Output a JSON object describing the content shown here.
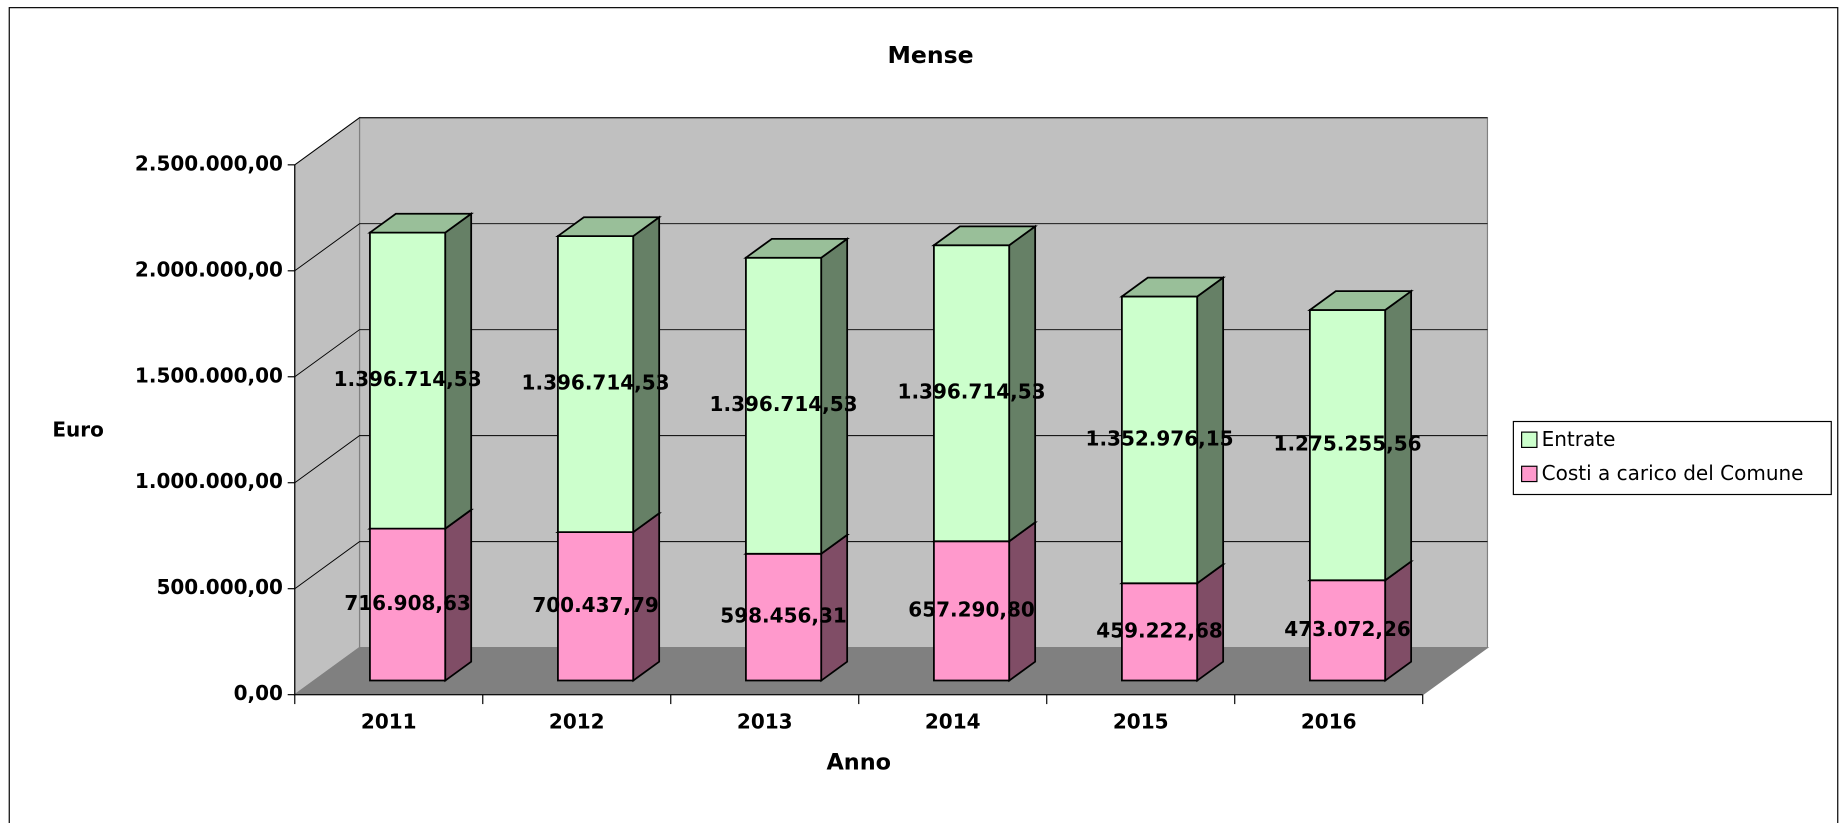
{
  "chart_data": {
    "type": "bar3d_stacked",
    "title": "Mense",
    "y_label": "Euro",
    "x_label": "Anno",
    "categories": [
      "2011",
      "2012",
      "2013",
      "2014",
      "2015",
      "2016"
    ],
    "series": [
      {
        "name": "Costi a carico del Comune",
        "color": "#ff99cc",
        "values": [
          716908.63,
          700437.79,
          598456.31,
          657290.8,
          459222.68,
          473072.26
        ],
        "value_labels": [
          "716.908,63",
          "700.437,79",
          "598.456,31",
          "657.290,80",
          "459.222,68",
          "473.072,26"
        ]
      },
      {
        "name": "Entrate",
        "color": "#ccffcc",
        "values": [
          1396714.53,
          1396714.53,
          1396714.53,
          1396714.53,
          1352976.15,
          1275255.56
        ],
        "value_labels": [
          "1.396.714,53",
          "1.396.714,53",
          "1.396.714,53",
          "1.396.714,53",
          "1.352.976,15",
          "1.275.255,56"
        ]
      }
    ],
    "ylim": [
      0,
      2500000
    ],
    "yticks": [
      {
        "value": 0,
        "label": "0,00"
      },
      {
        "value": 500000,
        "label": "500.000,00"
      },
      {
        "value": 1000000,
        "label": "1.000.000,00"
      },
      {
        "value": 1500000,
        "label": "1.500.000,00"
      },
      {
        "value": 2000000,
        "label": "2.000.000,00"
      },
      {
        "value": 2500000,
        "label": "2.500.000,00"
      }
    ],
    "grid": true,
    "legend": "right"
  }
}
